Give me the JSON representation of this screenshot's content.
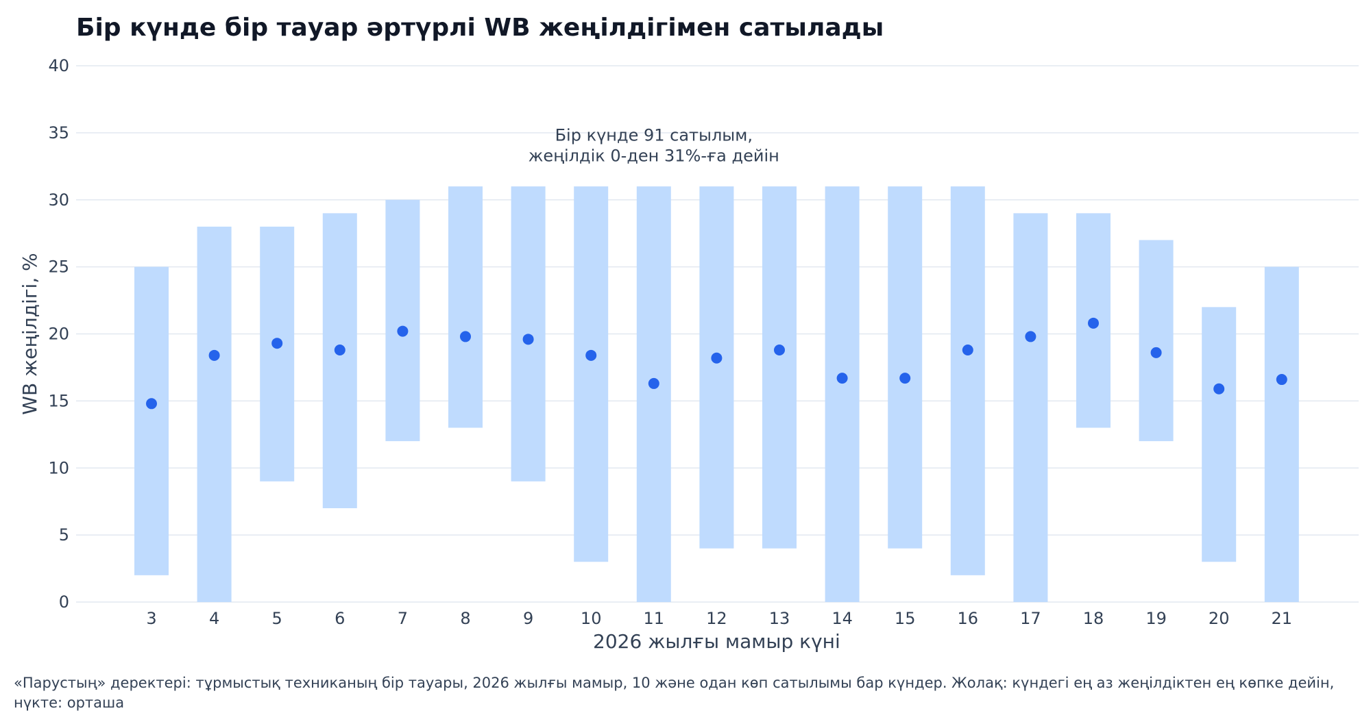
{
  "chart_data": {
    "type": "range-bar",
    "title": "Бір күнде бір тауар әртүрлі WB жеңілдігімен сатылады",
    "xlabel": "2026 жылғы мамыр күні",
    "ylabel": "WB жеңілдігі, %",
    "ylim": [
      0,
      40
    ],
    "yticks": [
      0,
      5,
      10,
      15,
      20,
      25,
      30,
      35,
      40
    ],
    "grid": "horizontal",
    "categories": [
      "3",
      "4",
      "5",
      "6",
      "7",
      "8",
      "9",
      "10",
      "11",
      "12",
      "13",
      "14",
      "15",
      "16",
      "17",
      "18",
      "19",
      "20",
      "21"
    ],
    "series": [
      {
        "name": "min",
        "values": [
          2,
          0,
          9,
          7,
          12,
          13,
          9,
          3,
          0,
          4,
          4,
          0,
          4,
          2,
          0,
          13,
          12,
          3,
          0
        ]
      },
      {
        "name": "max",
        "values": [
          25,
          28,
          28,
          29,
          30,
          31,
          31,
          31,
          31,
          31,
          31,
          31,
          31,
          31,
          29,
          29,
          27,
          22,
          25
        ]
      },
      {
        "name": "median",
        "values": [
          14.8,
          18.4,
          19.3,
          18.8,
          20.2,
          19.8,
          19.6,
          18.4,
          16.3,
          18.2,
          18.8,
          16.7,
          16.7,
          18.8,
          19.8,
          20.8,
          18.6,
          15.9,
          16.6
        ]
      }
    ],
    "annotation": {
      "lines": [
        "Бір күнде 91 сатылым,",
        "жеңілдік 0-ден 31%-ға дейін"
      ],
      "x": "11",
      "y": 34.4
    },
    "colors": {
      "range": "#bfdbfe",
      "median": "#2563eb",
      "grid": "#e2e8f0",
      "text": "#334155",
      "title": "#111827"
    }
  },
  "footnote": "«Парустың» деректері: тұрмыстық техниканың бір тауары, 2026 жылғы мамыр, 10 және одан көп сатылымы бар күндер. Жолақ: күндегі ең аз жеңілдіктен ең көпке дейін, нүкте: орташа"
}
